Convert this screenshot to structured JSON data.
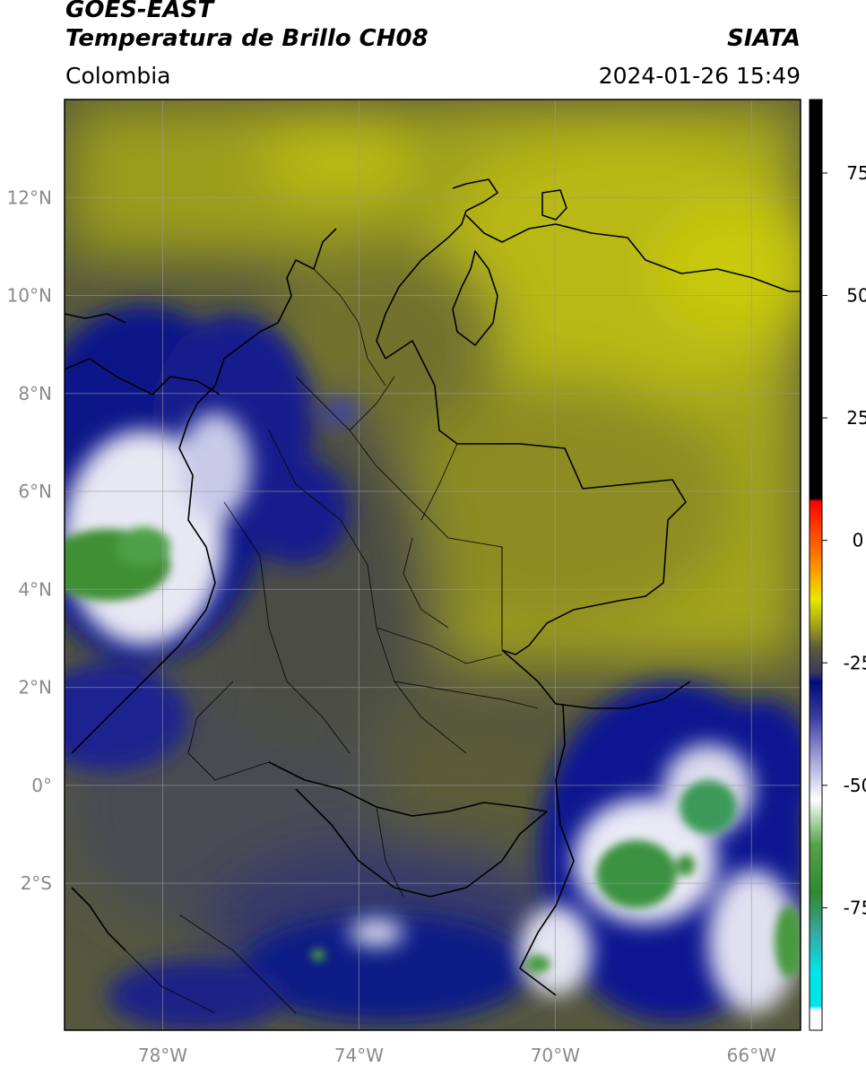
{
  "header": {
    "satellite": "GOES-EAST",
    "product": "Temperatura de Brillo CH08",
    "region": "Colombia",
    "agency": "SIATA",
    "timestamp": "2024-01-26 15:49"
  },
  "map": {
    "lon_range": [
      -80,
      -65
    ],
    "lat_range": [
      -5,
      14
    ],
    "lon_ticks": [
      {
        "value": -78,
        "label": "78°W"
      },
      {
        "value": -74,
        "label": "74°W"
      },
      {
        "value": -70,
        "label": "70°W"
      },
      {
        "value": -66,
        "label": "66°W"
      }
    ],
    "lat_ticks": [
      {
        "value": 12,
        "label": "12°N"
      },
      {
        "value": 10,
        "label": "10°N"
      },
      {
        "value": 8,
        "label": "8°N"
      },
      {
        "value": 6,
        "label": "6°N"
      },
      {
        "value": 4,
        "label": "4°N"
      },
      {
        "value": 2,
        "label": "2°N"
      },
      {
        "value": 0,
        "label": "0°"
      },
      {
        "value": -2,
        "label": "2°S"
      }
    ]
  },
  "colorbar": {
    "range": [
      -100,
      90
    ],
    "ticks": [
      {
        "value": 75,
        "label": "75"
      },
      {
        "value": 50,
        "label": "50"
      },
      {
        "value": 25,
        "label": "25"
      },
      {
        "value": 0,
        "label": "0"
      },
      {
        "value": -25,
        "label": "-25"
      },
      {
        "value": -50,
        "label": "-50"
      },
      {
        "value": -75,
        "label": "-75"
      }
    ],
    "stops": [
      {
        "value": -100,
        "color": "#ffffff"
      },
      {
        "value": -96,
        "color": "#ffffff"
      },
      {
        "value": -95,
        "color": "#00e5e5"
      },
      {
        "value": -88,
        "color": "#00e5e5"
      },
      {
        "value": -80,
        "color": "#3aa6a0"
      },
      {
        "value": -72,
        "color": "#2f8a2f"
      },
      {
        "value": -62,
        "color": "#56a24a"
      },
      {
        "value": -53,
        "color": "#ffffff"
      },
      {
        "value": -44,
        "color": "#9a9cd8"
      },
      {
        "value": -36,
        "color": "#3a3c9e"
      },
      {
        "value": -29,
        "color": "#000c80"
      },
      {
        "value": -27,
        "color": "#3a3a58"
      },
      {
        "value": -22,
        "color": "#5a5a3c"
      },
      {
        "value": -18,
        "color": "#9a9a1e"
      },
      {
        "value": -12,
        "color": "#e8e800"
      },
      {
        "value": -6,
        "color": "#ff9900"
      },
      {
        "value": 8,
        "color": "#ff0000"
      },
      {
        "value": 8.5,
        "color": "#000000"
      },
      {
        "value": 90,
        "color": "#000000"
      }
    ]
  }
}
